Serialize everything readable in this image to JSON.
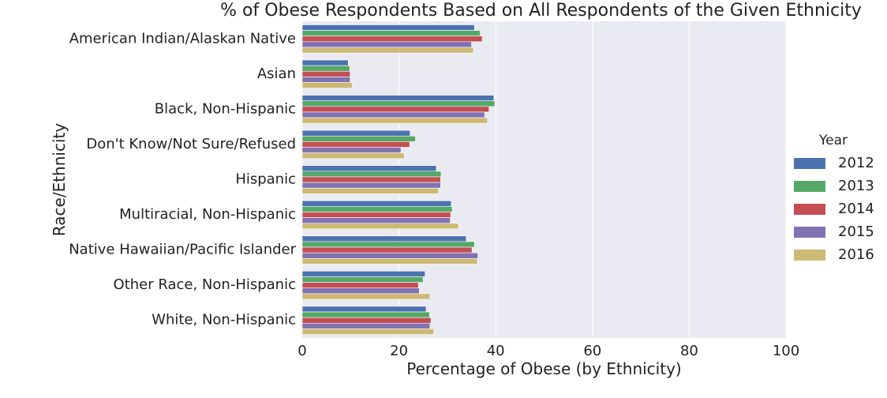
{
  "chart_data": {
    "type": "bar",
    "orientation": "horizontal",
    "title": "% of Obese Respondents Based on All Respondents of the Given Ethnicity",
    "xlabel": "Percentage of Obese (by Ethnicity)",
    "ylabel": "Race/Ethnicity",
    "xlim": [
      0,
      100
    ],
    "xticks": [
      "0",
      "20",
      "40",
      "60",
      "80",
      "100"
    ],
    "grid": true,
    "legend_title": "Year",
    "legend_position": "right",
    "categories": [
      "American Indian/Alaskan Native",
      "Asian",
      "Black, Non-Hispanic",
      "Don't Know/Not Sure/Refused",
      "Hispanic",
      "Multiracial, Non-Hispanic",
      "Native Hawaiian/Pacific Islander",
      "Other Race, Non-Hispanic",
      "White, Non-Hispanic"
    ],
    "series": [
      {
        "name": "2012",
        "color": "#4C72B0",
        "values": [
          35.6,
          9.5,
          39.6,
          22.3,
          27.7,
          30.8,
          33.9,
          25.4,
          25.6
        ]
      },
      {
        "name": "2013",
        "color": "#55A868",
        "values": [
          36.8,
          9.8,
          39.8,
          23.4,
          28.7,
          31.0,
          35.6,
          25.0,
          26.3
        ]
      },
      {
        "name": "2014",
        "color": "#C44E52",
        "values": [
          37.2,
          9.9,
          38.6,
          22.2,
          28.6,
          30.7,
          35.1,
          24.0,
          26.6
        ]
      },
      {
        "name": "2015",
        "color": "#8172B2",
        "values": [
          35.0,
          9.9,
          37.7,
          20.4,
          28.6,
          30.6,
          36.3,
          24.2,
          26.4
        ]
      },
      {
        "name": "2016",
        "color": "#CCB974",
        "values": [
          35.4,
          10.3,
          38.3,
          21.1,
          28.2,
          32.3,
          36.2,
          26.4,
          27.2
        ]
      }
    ],
    "colors": {
      "plot_background": "#EAEAF2",
      "grid": "#FFFFFF"
    }
  }
}
